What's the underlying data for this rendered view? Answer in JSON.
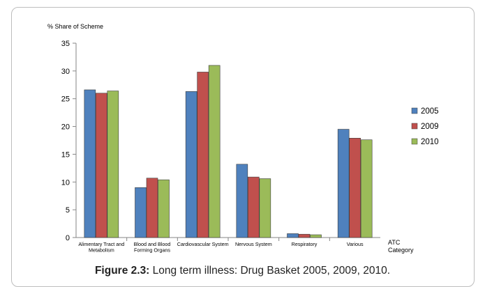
{
  "caption": {
    "label": "Figure 2.3:",
    "text": "Long term illness: Drug Basket 2005, 2009, 2010."
  },
  "chart_data": {
    "type": "bar",
    "title": "",
    "ylabel": "% Share of Scheme",
    "xlabel": "ATC\nCategory",
    "ylim": [
      0,
      35
    ],
    "yticks": [
      0,
      5,
      10,
      15,
      20,
      25,
      30,
      35
    ],
    "grid": false,
    "legend_position": "right",
    "categories": [
      "Alimentary Tract and\nMetabolism",
      "Blood and Blood\nForming Organs",
      "Cardiovascular System",
      "Nervous System",
      "Respiratory",
      "Various"
    ],
    "series": [
      {
        "name": "2005",
        "color": "#4f81bd",
        "values": [
          26.6,
          9.0,
          26.3,
          13.2,
          0.7,
          19.5
        ]
      },
      {
        "name": "2009",
        "color": "#c0504d",
        "values": [
          26.0,
          10.7,
          29.8,
          10.9,
          0.6,
          17.9
        ]
      },
      {
        "name": "2010",
        "color": "#9bbb59",
        "values": [
          26.4,
          10.4,
          31.0,
          10.6,
          0.5,
          17.6
        ]
      }
    ]
  }
}
